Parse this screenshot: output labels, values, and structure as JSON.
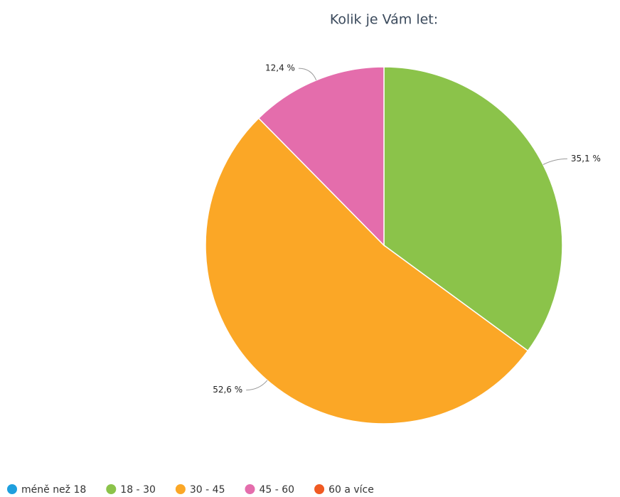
{
  "chart_data": {
    "type": "pie",
    "title": "Kolik je Vám let:",
    "categories": [
      "méně než 18",
      "18 - 30",
      "30 - 45",
      "45 - 60",
      "60 a více"
    ],
    "values": [
      0,
      35.1,
      52.6,
      12.4,
      0
    ],
    "value_labels": [
      null,
      "35,1 %",
      "52,6 %",
      "12,4 %",
      null
    ],
    "colors": [
      "#1e9fde",
      "#8bc34a",
      "#fba726",
      "#e46dac",
      "#f05a22"
    ],
    "legend": "bottom"
  }
}
